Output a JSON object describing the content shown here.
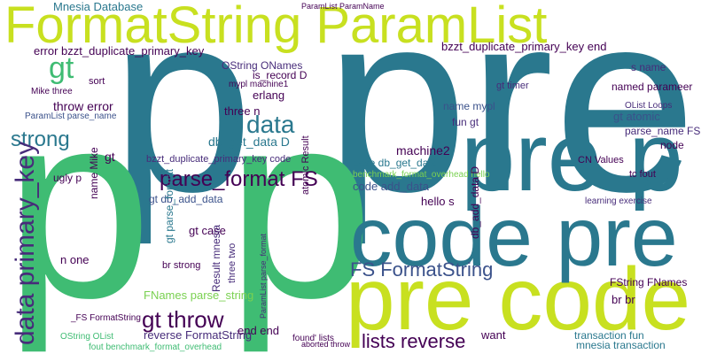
{
  "words": [
    "FormatString ParamList",
    "p pre",
    "p p",
    "pre code",
    "code pre",
    "pre p",
    "gt",
    "D data",
    "strong",
    "parse_format FS",
    "data primary_key",
    "FS FormatString",
    "gt throw",
    "lists reverse",
    "Mnesia Database",
    "error bzzt_duplicate_primary_key",
    "bzzt_duplicate_primary_key end",
    "OString ONames",
    "is_record D",
    "mypl machine1",
    "erlang",
    "three n",
    "throw error",
    "Mike three",
    "ParamList parse_name",
    "name Mike",
    "ugly p",
    "gt",
    "db_get_data D",
    "bzzt_duplicate_primary_key code",
    "gt db_add_data",
    "gt case",
    "br strong",
    "FNames parse_string",
    "reverse FormatString",
    "end end",
    "n one",
    "_FS FormatString",
    "OString OList",
    "fout benchmark_format_overhead",
    "case db_get_data",
    "code add_data",
    "hello s",
    "machine2",
    "name mypl",
    "fun gt",
    "gt timer",
    "named parameer",
    "gt atomic",
    "parse_name FS",
    "node",
    "s name",
    "OList Loops",
    "transaction fun",
    "mnesia transaction",
    "want",
    "br br",
    "FString FNames",
    "CN Values",
    "benchmark_format_overhead hello",
    "atomic Result",
    "db_add_data D",
    "Result mnesia",
    "ParamList parse_format",
    "three two",
    "gt parse_format",
    "ParamList ParamName",
    "sort",
    "learning exercise",
    "tc fout",
    "found' lists",
    "aborted throw"
  ]
}
